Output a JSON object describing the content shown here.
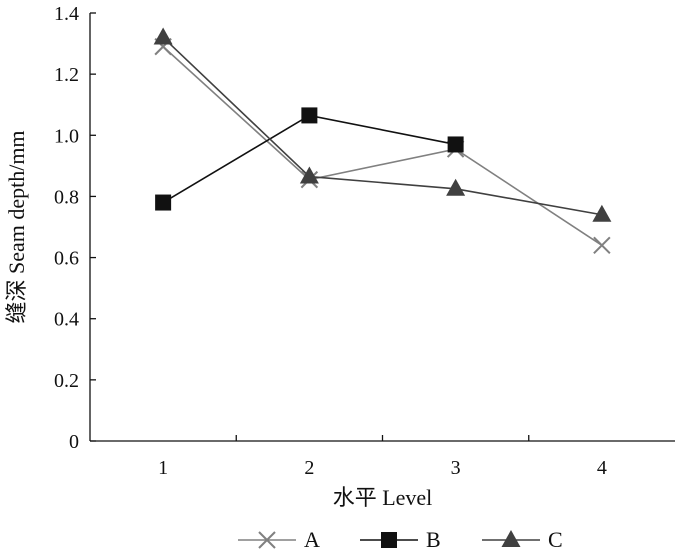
{
  "chart_data": {
    "type": "line",
    "title": "",
    "xlabel": "水平 Level",
    "ylabel": "缝深 Seam depth/mm",
    "x": [
      1,
      2,
      3,
      4
    ],
    "x_tick_labels": [
      "1",
      "2",
      "3",
      "4"
    ],
    "ylim": [
      0,
      1.4
    ],
    "y_ticks": [
      0,
      0.2,
      0.4,
      0.6,
      0.8,
      1.0,
      1.2,
      1.4
    ],
    "y_tick_labels": [
      "0",
      "0.2",
      "0.4",
      "0.6",
      "0.8",
      "1.0",
      "1.2",
      "1.4"
    ],
    "grid": false,
    "legend_position": "bottom",
    "series": [
      {
        "name": "A",
        "marker": "x",
        "color": "#808080",
        "values": [
          1.29,
          0.855,
          0.955,
          0.64
        ]
      },
      {
        "name": "B",
        "marker": "square",
        "color": "#111111",
        "values": [
          0.78,
          1.065,
          0.97,
          null
        ]
      },
      {
        "name": "C",
        "marker": "triangle",
        "color": "#404040",
        "values": [
          1.32,
          0.865,
          0.825,
          0.74
        ]
      }
    ]
  }
}
